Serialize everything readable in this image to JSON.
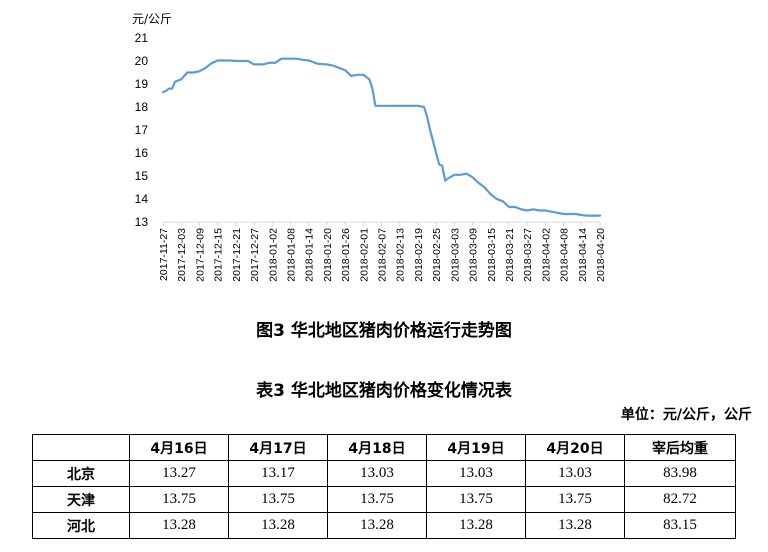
{
  "chart_data": {
    "type": "line",
    "title": "图3 华北地区猪肉价格运行走势图",
    "ylabel": "元/公斤",
    "ylim": [
      13,
      21
    ],
    "yticks": [
      13,
      14,
      15,
      16,
      17,
      18,
      19,
      20,
      21
    ],
    "grid": false,
    "line_color": "#5b9bd5",
    "x": [
      "2017-11-27",
      "2017-11-28",
      "2017-11-29",
      "2017-11-30",
      "2017-12-01",
      "2017-12-03",
      "2017-12-05",
      "2017-12-07",
      "2017-12-09",
      "2017-12-11",
      "2017-12-13",
      "2017-12-15",
      "2017-12-17",
      "2017-12-19",
      "2017-12-21",
      "2017-12-24",
      "2017-12-25",
      "2017-12-27",
      "2017-12-30",
      "2018-01-01",
      "2018-01-03",
      "2018-01-05",
      "2018-01-08",
      "2018-01-10",
      "2018-01-12",
      "2018-01-14",
      "2018-01-17",
      "2018-01-20",
      "2018-01-22",
      "2018-01-24",
      "2018-01-26",
      "2018-01-28",
      "2018-01-30",
      "2018-02-01",
      "2018-02-03",
      "2018-02-04",
      "2018-02-05",
      "2018-02-07",
      "2018-02-09",
      "2018-02-11",
      "2018-02-13",
      "2018-02-15",
      "2018-02-17",
      "2018-02-19",
      "2018-02-21",
      "2018-02-22",
      "2018-02-23",
      "2018-02-24",
      "2018-02-25",
      "2018-02-26",
      "2018-02-27",
      "2018-02-28",
      "2018-03-01",
      "2018-03-03",
      "2018-03-05",
      "2018-03-07",
      "2018-03-09",
      "2018-03-11",
      "2018-03-13",
      "2018-03-15",
      "2018-03-17",
      "2018-03-19",
      "2018-03-21",
      "2018-03-23",
      "2018-03-25",
      "2018-03-27",
      "2018-03-29",
      "2018-03-31",
      "2018-04-02",
      "2018-04-04",
      "2018-04-06",
      "2018-04-08",
      "2018-04-10",
      "2018-04-12",
      "2018-04-14",
      "2018-04-16",
      "2018-04-18",
      "2018-04-20"
    ],
    "y": [
      18.65,
      18.7,
      18.8,
      18.8,
      19.1,
      19.2,
      19.5,
      19.5,
      19.55,
      19.7,
      19.9,
      20.02,
      20.02,
      20.02,
      20.0,
      20.0,
      20.0,
      19.85,
      19.85,
      19.92,
      19.92,
      20.1,
      20.1,
      20.1,
      20.05,
      20.02,
      19.88,
      19.85,
      19.8,
      19.7,
      19.6,
      19.35,
      19.4,
      19.4,
      19.2,
      18.8,
      18.05,
      18.05,
      18.05,
      18.05,
      18.05,
      18.05,
      18.05,
      18.05,
      18.0,
      17.6,
      17.0,
      16.5,
      16.0,
      15.5,
      15.45,
      14.8,
      14.9,
      15.05,
      15.05,
      15.1,
      14.95,
      14.7,
      14.5,
      14.2,
      14.0,
      13.9,
      13.65,
      13.65,
      13.55,
      13.5,
      13.55,
      13.5,
      13.5,
      13.45,
      13.4,
      13.35,
      13.35,
      13.35,
      13.3,
      13.28,
      13.28,
      13.28
    ],
    "xtick_labels": [
      "2017-11-27",
      "2017-12-03",
      "2017-12-09",
      "2017-12-15",
      "2017-12-21",
      "2017-12-27",
      "2018-01-02",
      "2018-01-08",
      "2018-01-14",
      "2018-01-20",
      "2018-01-26",
      "2018-02-01",
      "2018-02-07",
      "2018-02-13",
      "2018-02-19",
      "2018-02-25",
      "2018-03-03",
      "2018-03-09",
      "2018-03-15",
      "2018-03-21",
      "2018-03-27",
      "2018-04-02",
      "2018-04-08",
      "2018-04-14",
      "2018-04-20"
    ]
  },
  "figure_caption": "图3 华北地区猪肉价格运行走势图",
  "table_title": "表3 华北地区猪肉价格变化情况表",
  "unit_note": "单位：元/公斤，公斤",
  "table": {
    "headers": [
      "",
      "4月16日",
      "4月17日",
      "4月18日",
      "4月19日",
      "4月20日",
      "宰后均重"
    ],
    "rows": [
      [
        "北京",
        "13.27",
        "13.17",
        "13.03",
        "13.03",
        "13.03",
        "83.98"
      ],
      [
        "天津",
        "13.75",
        "13.75",
        "13.75",
        "13.75",
        "13.75",
        "82.72"
      ],
      [
        "河北",
        "13.28",
        "13.28",
        "13.28",
        "13.28",
        "13.28",
        "83.15"
      ]
    ]
  }
}
